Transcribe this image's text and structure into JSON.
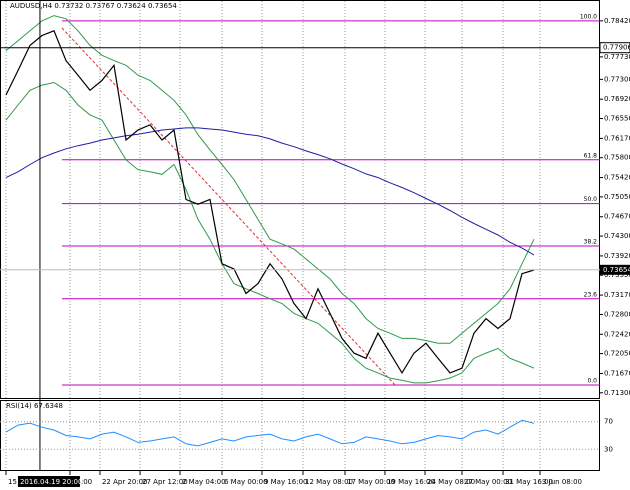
{
  "chart_data": [
    {
      "type": "line",
      "title": "AUDUSD,H4  0.73732 0.73767 0.73624 0.73654",
      "ylim": [
        0.712,
        0.788
      ],
      "yticks": [
        {
          "value": 0.713,
          "label": "0.71300"
        },
        {
          "value": 0.7167,
          "label": "0.71670"
        },
        {
          "value": 0.7205,
          "label": "0.72050"
        },
        {
          "value": 0.7242,
          "label": "0.72420"
        },
        {
          "value": 0.728,
          "label": "0.72800"
        },
        {
          "value": 0.7317,
          "label": "0.73170"
        },
        {
          "value": 0.7355,
          "label": "0.73550"
        },
        {
          "value": 0.7392,
          "label": "0.73920"
        },
        {
          "value": 0.743,
          "label": "0.74300"
        },
        {
          "value": 0.7467,
          "label": "0.74670"
        },
        {
          "value": 0.7505,
          "label": "0.75050"
        },
        {
          "value": 0.7542,
          "label": "0.75420"
        },
        {
          "value": 0.758,
          "label": "0.75800"
        },
        {
          "value": 0.7617,
          "label": "0.76170"
        },
        {
          "value": 0.7655,
          "label": "0.76550"
        },
        {
          "value": 0.7692,
          "label": "0.76920"
        },
        {
          "value": 0.773,
          "label": "0.77300"
        },
        {
          "value": 0.7773,
          "label": "0.77730"
        },
        {
          "value": 0.7842,
          "label": "0.78420"
        }
      ],
      "xlim": [
        -0.5,
        49.5
      ],
      "xticks": [
        {
          "value": 0,
          "label": "15"
        },
        {
          "value": 5.33,
          "label": "04:00"
        },
        {
          "value": 7.83,
          "label": "22 Apr 20:00"
        },
        {
          "value": 11.17,
          "label": "27 Apr 12:00"
        },
        {
          "value": 14.5,
          "label": "2 May 04:00"
        },
        {
          "value": 18,
          "label": "6 May 00:00"
        },
        {
          "value": 21.33,
          "label": "9 May 16:00"
        },
        {
          "value": 24.75,
          "label": "12 May 08:00"
        },
        {
          "value": 28.25,
          "label": "17 May 00:00"
        },
        {
          "value": 31.58,
          "label": "19 May 16:00"
        },
        {
          "value": 34.92,
          "label": "24 May 08:00"
        },
        {
          "value": 38,
          "label": "27 May 00:00"
        },
        {
          "value": 41.42,
          "label": "31 May 16:00"
        },
        {
          "value": 44.5,
          "label": "3 Jun 08:00"
        }
      ],
      "series": [
        {
          "color": "#2e9a4a",
          "values": [
            0.7785,
            0.7804,
            0.7823,
            0.7842,
            0.7852,
            0.7846,
            0.7823,
            0.7795,
            0.7776,
            0.7766,
            0.7757,
            0.7738,
            0.7728,
            0.7709,
            0.769,
            0.7662,
            0.7624,
            0.7595,
            0.7567,
            0.7538,
            0.75,
            0.7462,
            0.7424,
            0.7415,
            0.7405,
            0.7386,
            0.7367,
            0.7348,
            0.732,
            0.7301,
            0.7272,
            0.7253,
            0.7244,
            0.7234,
            0.7234,
            0.723,
            0.7225,
            0.7225,
            0.7244,
            0.7263,
            0.7282,
            0.7301,
            0.7329,
            0.7377,
            0.7424
          ]
        },
        {
          "color": "#2e9a4a",
          "values": [
            0.7652,
            0.7681,
            0.7709,
            0.7719,
            0.7724,
            0.7709,
            0.7681,
            0.7662,
            0.7652,
            0.7614,
            0.7576,
            0.7557,
            0.7553,
            0.7548,
            0.7567,
            0.7519,
            0.7462,
            0.7424,
            0.7377,
            0.7339,
            0.7329,
            0.732,
            0.731,
            0.7301,
            0.7282,
            0.7272,
            0.7263,
            0.7244,
            0.7225,
            0.7196,
            0.7177,
            0.7168,
            0.7158,
            0.7154,
            0.7149,
            0.7149,
            0.7153,
            0.7158,
            0.7168,
            0.7196,
            0.7206,
            0.7215,
            0.7196,
            0.7187,
            0.7177
          ]
        },
        {
          "color": "#1f1fa8",
          "values": [
            0.7542,
            0.7553,
            0.7567,
            0.758,
            0.7589,
            0.7597,
            0.7603,
            0.7608,
            0.7614,
            0.7618,
            0.7622,
            0.7625,
            0.7629,
            0.7633,
            0.7635,
            0.7637,
            0.7637,
            0.7635,
            0.7633,
            0.7629,
            0.7625,
            0.7622,
            0.7616,
            0.7608,
            0.7601,
            0.7593,
            0.7586,
            0.7578,
            0.7568,
            0.7559,
            0.7549,
            0.7542,
            0.7532,
            0.7523,
            0.7513,
            0.7502,
            0.7491,
            0.7479,
            0.7466,
            0.7454,
            0.7443,
            0.7432,
            0.7418,
            0.7407,
            0.7394
          ]
        },
        {
          "color": "#000000",
          "values": [
            0.77,
            0.7747,
            0.7795,
            0.7814,
            0.7823,
            0.7766,
            0.7738,
            0.7709,
            0.7728,
            0.7757,
            0.7614,
            0.7633,
            0.7643,
            0.7614,
            0.7633,
            0.75,
            0.7491,
            0.75,
            0.7377,
            0.7367,
            0.732,
            0.7339,
            0.7377,
            0.7348,
            0.7301,
            0.7272,
            0.7329,
            0.7282,
            0.7234,
            0.7206,
            0.7196,
            0.7244,
            0.7206,
            0.7168,
            0.7206,
            0.7225,
            0.7196,
            0.7168,
            0.7177,
            0.7244,
            0.7272,
            0.7253,
            0.7272,
            0.7358,
            0.7365
          ]
        }
      ],
      "fib_levels": [
        {
          "label": "100.0",
          "price": 0.7842
        },
        {
          "label": "61.8",
          "price": 0.7576
        },
        {
          "label": "50.0",
          "price": 0.7492
        },
        {
          "label": "38.2",
          "price": 0.7411
        },
        {
          "label": "23.6",
          "price": 0.731
        },
        {
          "label": "0.0",
          "price": 0.7145
        }
      ],
      "fib_color": "#c000c0",
      "current_price": 0.73654,
      "crosshair": {
        "label": "2016.04.19 20:00",
        "x": 2.83,
        "price": 0.77906
      }
    },
    {
      "type": "line",
      "title": "RSI(14) 67.6348",
      "ylim": [
        0,
        100
      ],
      "yticks": [
        70,
        30
      ],
      "series": [
        {
          "color": "#1e90ff",
          "values": [
            55,
            65,
            68,
            62,
            58,
            50,
            48,
            45,
            52,
            55,
            48,
            40,
            42,
            45,
            48,
            38,
            35,
            40,
            45,
            42,
            48,
            50,
            52,
            45,
            42,
            48,
            52,
            45,
            38,
            40,
            48,
            45,
            42,
            38,
            40,
            45,
            50,
            48,
            45,
            55,
            58,
            52,
            62,
            72,
            67.6348
          ]
        }
      ]
    }
  ]
}
